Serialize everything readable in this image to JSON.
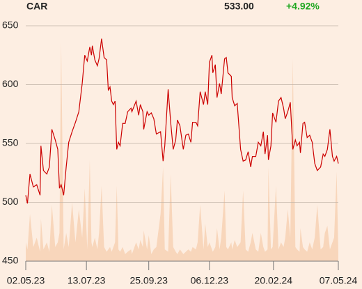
{
  "header": {
    "symbol": "CAR",
    "price": "533.00",
    "change": "+4.92%"
  },
  "chart_data": {
    "type": "line",
    "x": [
      "2023-05-02",
      "2023-05-04",
      "2023-05-07",
      "2023-05-11",
      "2023-05-15",
      "2023-05-19",
      "2023-05-20",
      "2023-05-23",
      "2023-05-27",
      "2023-05-30",
      "2023-06-02",
      "2023-06-06",
      "2023-06-09",
      "2023-06-11",
      "2023-06-13",
      "2023-06-16",
      "2023-06-19",
      "2023-06-22",
      "2023-06-26",
      "2023-06-30",
      "2023-07-04",
      "2023-07-08",
      "2023-07-11",
      "2023-07-14",
      "2023-07-17",
      "2023-07-19",
      "2023-07-20",
      "2023-07-23",
      "2023-07-26",
      "2023-07-28",
      "2023-07-31",
      "2023-08-03",
      "2023-08-06",
      "2023-08-08",
      "2023-08-10",
      "2023-08-12",
      "2023-08-14",
      "2023-08-16",
      "2023-08-18",
      "2023-08-20",
      "2023-08-22",
      "2023-08-25",
      "2023-08-28",
      "2023-08-31",
      "2023-09-04",
      "2023-09-05",
      "2023-09-10",
      "2023-09-13",
      "2023-09-15",
      "2023-09-18",
      "2023-09-19",
      "2023-09-23",
      "2023-09-25",
      "2023-09-28",
      "2023-10-01",
      "2023-10-04",
      "2023-10-09",
      "2023-10-12",
      "2023-10-14",
      "2023-10-18",
      "2023-10-21",
      "2023-10-24",
      "2023-10-27",
      "2023-10-29",
      "2023-11-01",
      "2023-11-05",
      "2023-11-08",
      "2023-11-11",
      "2023-11-14",
      "2023-11-16",
      "2023-11-20",
      "2023-11-22",
      "2023-11-25",
      "2023-11-29",
      "2023-12-01",
      "2023-12-04",
      "2023-12-06",
      "2023-12-09",
      "2023-12-10",
      "2023-12-13",
      "2023-12-15",
      "2023-12-18",
      "2023-12-20",
      "2023-12-24",
      "2023-12-26",
      "2023-12-28",
      "2024-01-01",
      "2024-01-02",
      "2024-01-05",
      "2024-01-08",
      "2024-01-12",
      "2024-01-15",
      "2024-01-18",
      "2024-01-21",
      "2024-01-24",
      "2024-01-26",
      "2024-01-30",
      "2024-02-02",
      "2024-02-05",
      "2024-02-08",
      "2024-02-10",
      "2024-02-13",
      "2024-02-14",
      "2024-02-17",
      "2024-02-19",
      "2024-02-23",
      "2024-02-26",
      "2024-02-29",
      "2024-03-03",
      "2024-03-05",
      "2024-03-08",
      "2024-03-11",
      "2024-03-14",
      "2024-03-17",
      "2024-03-19",
      "2024-03-22",
      "2024-03-23",
      "2024-03-26",
      "2024-03-28",
      "2024-03-31",
      "2024-04-03",
      "2024-04-06",
      "2024-04-09",
      "2024-04-12",
      "2024-04-16",
      "2024-04-19",
      "2024-04-21",
      "2024-04-24",
      "2024-04-27",
      "2024-04-30",
      "2024-05-02",
      "2024-05-05",
      "2024-05-07"
    ],
    "series": [
      {
        "name": "CAR",
        "color": "#cc0000",
        "values": [
          506,
          499,
          524,
          513,
          515,
          506,
          548,
          527,
          524,
          530,
          562,
          553,
          545,
          512,
          515,
          506,
          530,
          551,
          560,
          568,
          577,
          601,
          625,
          620,
          632,
          625,
          633,
          621,
          616,
          622,
          639,
          623,
          621,
          595,
          598,
          586,
          583,
          586,
          545,
          551,
          548,
          567,
          567,
          577,
          580,
          577,
          586,
          574,
          583,
          577,
          562,
          577,
          574,
          576,
          571,
          558,
          560,
          535,
          548,
          596,
          568,
          545,
          553,
          570,
          565,
          545,
          557,
          558,
          551,
          568,
          568,
          565,
          594,
          583,
          594,
          583,
          619,
          625,
          610,
          617,
          589,
          601,
          592,
          622,
          623,
          610,
          607,
          589,
          582,
          584,
          545,
          535,
          536,
          543,
          530,
          539,
          539,
          551,
          548,
          560,
          541,
          557,
          536,
          548,
          576,
          568,
          586,
          589,
          580,
          571,
          577,
          585,
          545,
          553,
          548,
          551,
          542,
          567,
          568,
          555,
          557,
          551,
          533,
          527,
          530,
          541,
          539,
          545,
          562,
          539,
          535,
          539,
          533
        ]
      },
      {
        "name": "Volume",
        "color": "#f8d6bb",
        "axis": "y2",
        "values": [
          8,
          5,
          20,
          6,
          10,
          4,
          18,
          5,
          8,
          4,
          24,
          6,
          8,
          12,
          93,
          5,
          12,
          6,
          25,
          8,
          22,
          10,
          31,
          5,
          43,
          8,
          6,
          10,
          5,
          12,
          32,
          6,
          4,
          5,
          6,
          4,
          6,
          8,
          32,
          5,
          4,
          6,
          3,
          4,
          5,
          3,
          8,
          5,
          9,
          6,
          13,
          5,
          11,
          3,
          5,
          6,
          20,
          40,
          5,
          4,
          37,
          6,
          4,
          3,
          5,
          3,
          4,
          5,
          4,
          6,
          5,
          8,
          24,
          5,
          16,
          6,
          8,
          5,
          4,
          6,
          14,
          5,
          10,
          30,
          6,
          5,
          8,
          5,
          9,
          6,
          8,
          30,
          5,
          4,
          8,
          12,
          5,
          4,
          12,
          6,
          4,
          5,
          40,
          5,
          6,
          32,
          5,
          8,
          6,
          10,
          22,
          10,
          86,
          6,
          5,
          4,
          14,
          6,
          5,
          4,
          8,
          5,
          10,
          24,
          5,
          6,
          12,
          15,
          5,
          8,
          10,
          38,
          4
        ]
      }
    ],
    "xlim": [
      "2023-05-02",
      "2024-05-07"
    ],
    "xticks": [
      {
        "value": "2023-05-02",
        "label": "02.05.23"
      },
      {
        "value": "2023-07-13",
        "label": "13.07.23"
      },
      {
        "value": "2023-09-25",
        "label": "25.09.23"
      },
      {
        "value": "2023-12-06",
        "label": "06.12.23"
      },
      {
        "value": "2024-02-20",
        "label": "20.02.24"
      },
      {
        "value": "2024-05-07",
        "label": "07.05.24"
      }
    ],
    "ylim": [
      450,
      650
    ],
    "yticks": [
      450,
      500,
      550,
      600,
      650
    ],
    "y2lim": [
      0,
      100
    ],
    "grid": true
  }
}
